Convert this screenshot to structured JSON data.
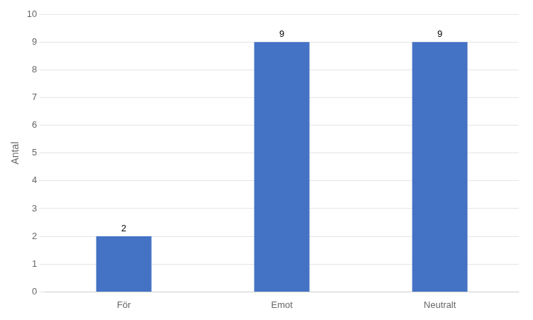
{
  "chart_data": {
    "type": "bar",
    "categories": [
      "För",
      "Emot",
      "Neutralt"
    ],
    "values": [
      2,
      9,
      9
    ],
    "color": "#4472C4",
    "ylabel": "Antal",
    "ylim": [
      0,
      10
    ],
    "yticks": [
      0,
      1,
      2,
      3,
      4,
      5,
      6,
      7,
      8,
      9,
      10
    ],
    "grid": true,
    "data_labels": true
  }
}
